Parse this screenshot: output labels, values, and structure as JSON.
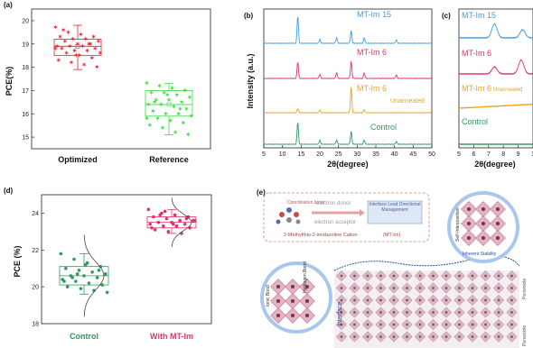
{
  "chart_data": [
    {
      "panel": "(a)",
      "type": "box",
      "ylabel": "PCE(%)",
      "ylim": [
        14.5,
        20.5
      ],
      "yticks": [
        "15",
        "16",
        "17",
        "18",
        "19",
        "20"
      ],
      "categories": [
        "Optimized",
        "Reference"
      ],
      "series": [
        {
          "name": "Optimized",
          "color": "#e8212b",
          "box": {
            "q1": 18.5,
            "median": 18.9,
            "q3": 19.2,
            "mean": 18.9,
            "whisker_low": 17.9,
            "whisker_high": 19.8
          },
          "points": [
            19.7,
            19.5,
            19.4,
            19.3,
            19.3,
            19.2,
            19.2,
            19.1,
            19.1,
            19.0,
            19.0,
            18.9,
            18.9,
            18.9,
            18.8,
            18.8,
            18.7,
            18.7,
            18.6,
            18.6,
            18.5,
            18.4,
            18.3,
            18.2,
            18.1,
            18.0,
            19.6,
            18.5,
            19.0,
            18.8
          ]
        },
        {
          "name": "Reference",
          "color": "#39d943",
          "box": {
            "q1": 15.9,
            "median": 16.4,
            "q3": 17.0,
            "mean": 16.4,
            "whisker_low": 15.1,
            "whisker_high": 17.3
          },
          "points": [
            17.3,
            17.2,
            17.1,
            17.0,
            16.9,
            16.9,
            16.8,
            16.7,
            16.6,
            16.6,
            16.5,
            16.4,
            16.4,
            16.3,
            16.2,
            16.1,
            16.0,
            16.0,
            15.9,
            15.8,
            15.7,
            15.6,
            15.5,
            15.4,
            15.2,
            15.1,
            16.5,
            16.8,
            16.2,
            15.8
          ]
        }
      ]
    },
    {
      "panel": "(b)",
      "type": "line",
      "xlabel": "2θ(degree)",
      "ylabel": "Intensity (a.u.)",
      "xlim": [
        5,
        50
      ],
      "xticks": [
        "5",
        "10",
        "15",
        "20",
        "25",
        "30",
        "35",
        "40",
        "45",
        "50"
      ],
      "series": [
        {
          "name": "MT-Im 15",
          "color": "#3f9fe3",
          "peaks": [
            [
              14.1,
              1.0
            ],
            [
              20.0,
              0.15
            ],
            [
              24.5,
              0.2
            ],
            [
              28.4,
              0.45
            ],
            [
              31.9,
              0.2
            ],
            [
              40.5,
              0.12
            ]
          ]
        },
        {
          "name": "MT-Im 6",
          "color": "#e0336e",
          "peaks": [
            [
              14.1,
              0.6
            ],
            [
              20.0,
              0.15
            ],
            [
              24.5,
              0.2
            ],
            [
              28.4,
              0.6
            ],
            [
              31.9,
              0.2
            ],
            [
              40.5,
              0.12
            ]
          ]
        },
        {
          "name": "MT-Im 6",
          "note": "Unannealed",
          "color": "#f0a020",
          "peaks": [
            [
              14.1,
              0.15
            ],
            [
              20.0,
              0.1
            ],
            [
              28.4,
              0.9
            ],
            [
              31.9,
              0.1
            ]
          ]
        },
        {
          "name": "Control",
          "color": "#2f9a5b",
          "peaks": [
            [
              14.1,
              0.8
            ],
            [
              20.0,
              0.15
            ],
            [
              24.5,
              0.15
            ],
            [
              28.4,
              0.45
            ],
            [
              31.9,
              0.15
            ],
            [
              40.5,
              0.1
            ]
          ]
        }
      ]
    },
    {
      "panel": "(c)",
      "type": "line",
      "xlabel": "2θ(degree)",
      "xlim": [
        5,
        10
      ],
      "xticks": [
        "5",
        "6",
        "7",
        "8",
        "9",
        "1"
      ],
      "series": [
        {
          "name": "MT-Im 15",
          "color": "#3f9fe3",
          "peaks": [
            [
              7.4,
              0.7
            ],
            [
              9.3,
              0.4
            ]
          ]
        },
        {
          "name": "MT-Im 6",
          "color": "#e0336e",
          "peaks": [
            [
              7.4,
              0.35
            ],
            [
              9.2,
              0.7
            ]
          ]
        },
        {
          "name": "MT-Im 6",
          "note": "Unannealed",
          "color": "#f0a020",
          "peaks": []
        },
        {
          "name": "Control",
          "color": "#2f9a5b",
          "peaks": []
        }
      ]
    },
    {
      "panel": "(d)",
      "type": "box",
      "ylabel": "PCE (%)",
      "ylim": [
        18,
        25
      ],
      "yticks": [
        "18",
        "20",
        "22",
        "24"
      ],
      "categories": [
        "Control",
        "With MT-Im"
      ],
      "series": [
        {
          "name": "Control",
          "color": "#2f9a5b",
          "box": {
            "q1": 20.1,
            "median": 20.6,
            "q3": 21.1,
            "mean": 20.6,
            "whisker_low": 19.6,
            "whisker_high": 21.8
          },
          "points": [
            21.8,
            21.5,
            21.3,
            21.1,
            21.0,
            20.9,
            20.8,
            20.7,
            20.6,
            20.6,
            20.5,
            20.4,
            20.3,
            20.2,
            20.1,
            20.0,
            19.9,
            19.8,
            19.7,
            20.5,
            21.2,
            20.9,
            20.3,
            20.7
          ]
        },
        {
          "name": "With MT-Im",
          "color": "#e0336e",
          "box": {
            "q1": 23.2,
            "median": 23.5,
            "q3": 23.8,
            "mean": 23.5,
            "whisker_low": 22.9,
            "whisker_high": 24.2
          },
          "points": [
            24.2,
            24.0,
            23.9,
            23.8,
            23.8,
            23.7,
            23.6,
            23.6,
            23.5,
            23.5,
            23.4,
            23.4,
            23.3,
            23.3,
            23.2,
            23.1,
            23.0,
            22.9,
            23.6,
            23.9,
            23.4,
            23.7,
            23.2,
            24.1
          ]
        }
      ]
    }
  ],
  "panel_labels": {
    "a": "(a)",
    "b": "(b)",
    "c": "(c)",
    "d": "(d)",
    "e": "(e)"
  },
  "schematic": {
    "coordination_bond": "Coordination bond",
    "electron_donor": "electron donor",
    "electron_acceptor": "electron acceptor",
    "box_text": "Interface Lead Directional Management",
    "cation": "2-Methylthio-2-imidazoline Cation",
    "cation_abbr": "(MT-Im)",
    "ionic_bond": "Ionic Bond",
    "hydrogen_bond": "Hydrogen Bond",
    "interface": "Interface",
    "inherent_stability": "Inherent Stability",
    "perovskite_right_top": "Perovskite",
    "perovskite_right_bottom": "Perovskite",
    "side_label_top": "Self-Interposition"
  }
}
